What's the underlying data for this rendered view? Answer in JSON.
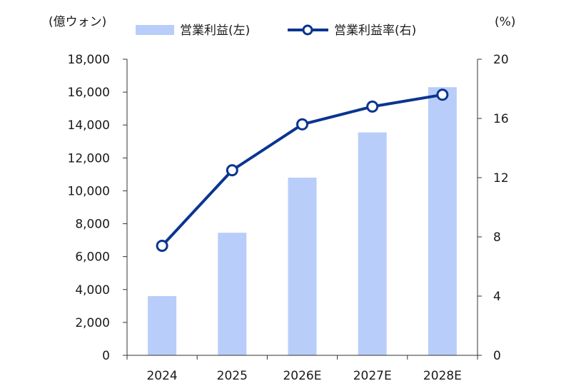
{
  "chart_data": {
    "type": "bar+line",
    "categories": [
      "2024",
      "2025",
      "2026E",
      "2027E",
      "2028E"
    ],
    "series": [
      {
        "name": "営業利益(左)",
        "type": "bar",
        "axis": "left",
        "values": [
          3600,
          7450,
          10800,
          13550,
          16300
        ]
      },
      {
        "name": "営業利益率(右)",
        "type": "line",
        "axis": "right",
        "values": [
          7.4,
          12.5,
          15.6,
          16.8,
          17.6
        ]
      }
    ],
    "y_left": {
      "label": "(億ウォン)",
      "min": 0,
      "max": 18000,
      "step": 2000
    },
    "y_right": {
      "label": "(%)",
      "min": 0,
      "max": 20,
      "step": 4
    },
    "legend_position": "top",
    "grid": false,
    "colors": {
      "bar": "#b8cdf9",
      "line": "#0a3590",
      "axis": "#333333"
    }
  }
}
